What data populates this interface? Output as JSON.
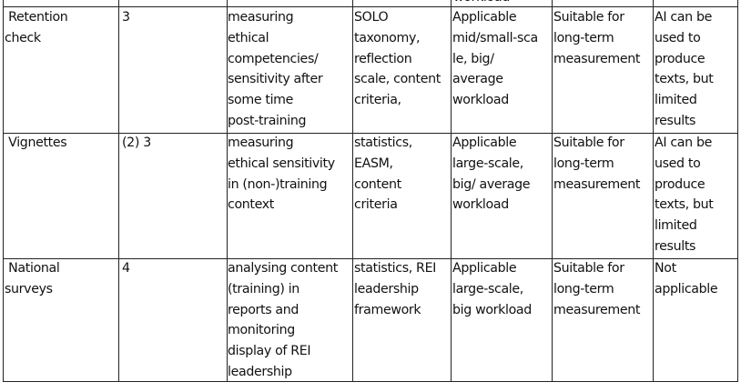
{
  "table": {
    "partial_top_cell": "workload",
    "rows": [
      {
        "method": " Retention\ncheck",
        "level": "3",
        "purpose": "measuring\nethical\ncompetencies/\nsensitivity after\nsome time\npost-training",
        "analysis": "SOLO\ntaxonomy,\nreflection\nscale, content\ncriteria,",
        "applicability": "Applicable\nmid/small-sca\nle, big/\naverage\nworkload",
        "measurement": "Suitable for\nlong-term\nmeasurement",
        "ai": "AI can be\nused to\nproduce\ntexts, but\nlimited\nresults"
      },
      {
        "method": " Vignettes",
        "level": "(2) 3",
        "purpose": "measuring\nethical sensitivity\nin (non-)training\ncontext",
        "analysis": "statistics,\nEASM,\ncontent\ncriteria",
        "applicability": "Applicable\nlarge-scale,\nbig/ average\nworkload",
        "measurement": "Suitable for\nlong-term\nmeasurement",
        "ai": "AI can be\nused to\nproduce\ntexts, but\nlimited\nresults"
      },
      {
        "method": " National\nsurveys",
        "level": "4",
        "purpose": "analysing content\n(training) in\nreports and\nmonitoring\ndisplay of REI\nleadership",
        "analysis": "statistics, REI\nleadership\nframework",
        "applicability": "Applicable\nlarge-scale,\nbig workload",
        "measurement": "Suitable for\nlong-term\nmeasurement",
        "ai": "Not\napplicable"
      }
    ]
  }
}
